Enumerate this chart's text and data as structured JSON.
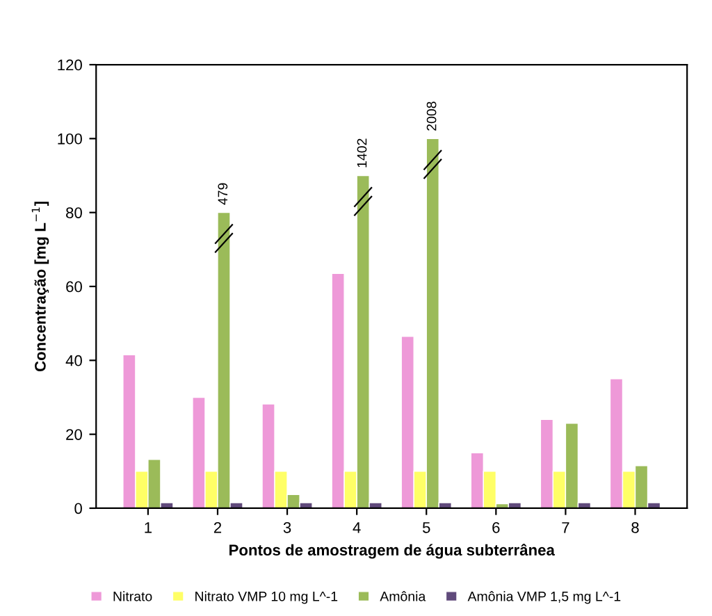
{
  "chart_data": {
    "type": "bar",
    "xlabel": "Pontos de amostragem de água subterrânea",
    "ylabel": "Concentração [mg L$^{−1}$]",
    "categories": [
      "1",
      "2",
      "3",
      "4",
      "5",
      "6",
      "7",
      "8"
    ],
    "series": [
      {
        "name": "Nitrato",
        "color": "#ee99d8",
        "values": [
          41.5,
          30,
          28.2,
          63.5,
          46.5,
          15,
          24,
          35
        ]
      },
      {
        "name": "Nitrato VMP 10 mg L^-1",
        "color": "#ffff66",
        "values": [
          10,
          10,
          10,
          10,
          10,
          10,
          10,
          10
        ]
      },
      {
        "name": "Amônia",
        "color": "#9bbb59",
        "values": [
          13.2,
          80,
          3.7,
          90,
          100,
          1.2,
          23,
          11.5
        ]
      },
      {
        "name": "Amônia VMP 1,5 mg L^-1",
        "color": "#604a7b",
        "values": [
          1.5,
          1.5,
          1.5,
          1.5,
          1.5,
          1.5,
          1.5,
          1.5
        ]
      }
    ],
    "annotations": [
      {
        "text": "479",
        "x": "2",
        "y": 80
      },
      {
        "text": "1402",
        "x": "4",
        "y": 90
      },
      {
        "text": "2008",
        "x": "5",
        "y": 100
      }
    ],
    "ylim": [
      0,
      120
    ],
    "yticks": [
      0,
      20,
      40,
      60,
      80,
      100,
      120
    ],
    "grid": false,
    "legend": "bottom"
  }
}
